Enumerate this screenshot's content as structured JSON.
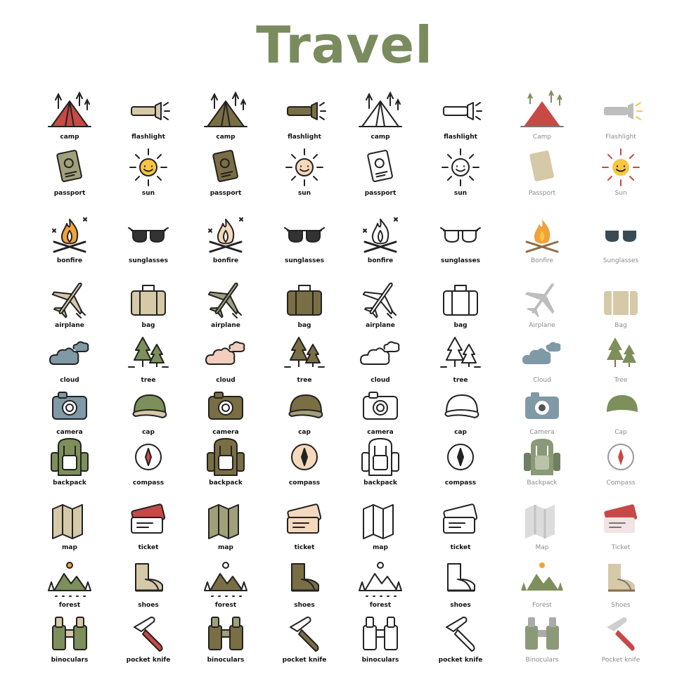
{
  "title": "Travel",
  "palette": {
    "tent_red": "#c74a45",
    "olive": "#7a6e45",
    "olive_dark": "#6a6136",
    "olive_light": "#a0a07a",
    "beige": "#d6c9a8",
    "green": "#7d8f5a",
    "blue_grey": "#7f99a5",
    "orange": "#f2a23a",
    "yellow": "#f6c644",
    "peach": "#f6d9bd",
    "pink": "#f3cdbe",
    "red": "#c84848",
    "ink": "#222222",
    "grey": "#bdbdbd"
  },
  "styles": [
    "colored",
    "olive",
    "outline",
    "flat"
  ],
  "rows": [
    {
      "left": {
        "icon": "camp",
        "label": "camp",
        "flat_label": "Camp"
      },
      "right": {
        "icon": "flashlight",
        "label": "flashlight",
        "flat_label": "Flashlight"
      }
    },
    {
      "left": {
        "icon": "passport",
        "label": "passport",
        "flat_label": "Passport"
      },
      "right": {
        "icon": "sun",
        "label": "sun",
        "flat_label": "Sun"
      }
    },
    {
      "left": {
        "icon": "bonfire",
        "label": "bonfire",
        "flat_label": "Bonfire"
      },
      "right": {
        "icon": "sunglasses",
        "label": "sunglasses",
        "flat_label": "Sunglasses"
      }
    },
    {
      "left": {
        "icon": "airplane",
        "label": "airplane",
        "flat_label": "Airplane"
      },
      "right": {
        "icon": "bag",
        "label": "bag",
        "flat_label": "Bag"
      }
    },
    {
      "left": {
        "icon": "cloud",
        "label": "cloud",
        "flat_label": "Cloud"
      },
      "right": {
        "icon": "tree",
        "label": "tree",
        "flat_label": "Tree"
      }
    },
    {
      "left": {
        "icon": "camera",
        "label": "camera",
        "flat_label": "Camera"
      },
      "right": {
        "icon": "cap",
        "label": "cap",
        "flat_label": "Cap"
      }
    },
    {
      "left": {
        "icon": "backpack",
        "label": "backpack",
        "flat_label": "Backpack"
      },
      "right": {
        "icon": "compass",
        "label": "compass",
        "flat_label": "Compass"
      }
    },
    {
      "left": {
        "icon": "map",
        "label": "map",
        "flat_label": "Map"
      },
      "right": {
        "icon": "ticket",
        "label": "ticket",
        "flat_label": "Ticket"
      }
    },
    {
      "left": {
        "icon": "forest",
        "label": "forest",
        "flat_label": "Forest"
      },
      "right": {
        "icon": "shoes",
        "label": "shoes",
        "flat_label": "Shoes"
      }
    },
    {
      "left": {
        "icon": "binoculars",
        "label": "binoculars",
        "flat_label": "Binoculars"
      },
      "right": {
        "icon": "pocket-knife",
        "label": "pocket knife",
        "flat_label": "Pocket knife"
      }
    }
  ]
}
